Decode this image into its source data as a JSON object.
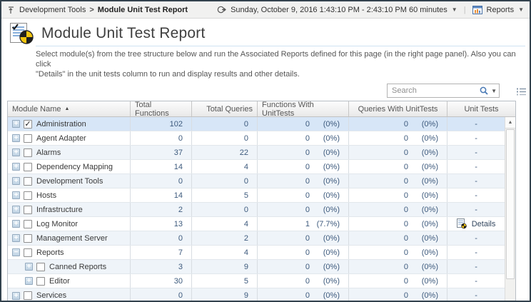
{
  "breadcrumb": {
    "root": "Development Tools",
    "separator": ">",
    "current": "Module Unit Test Report"
  },
  "topbar": {
    "time_range": "Sunday, October 9, 2016 1:43:10 PM - 2:43:10 PM 60 minutes",
    "reports_label": "Reports"
  },
  "header": {
    "title": "Module Unit Test Report",
    "description_lines": [
      "Select module(s) from the tree structure below and run the Associated Reports defined for this page (in the right page panel). Also you can click",
      "\"Details\" in the unit tests column to run and display results and other details."
    ]
  },
  "search": {
    "placeholder": "Search"
  },
  "icons": {
    "sort_asc": "▲",
    "caret_down": "▼",
    "scroll_up": "▲",
    "checkmark": "✓",
    "expand": "+",
    "collapse": "−"
  },
  "colors": {
    "selected_row": "#d7e6f7",
    "alt_row": "#eff4f9",
    "number_text": "#3d5a7d",
    "pie_yellow": "#f2c50f",
    "pie_black": "#1f1f1f",
    "accent_blue": "#4a7ab5"
  },
  "table": {
    "columns": [
      "Module Name",
      "Total Functions",
      "Total Queries",
      "Functions With UnitTests",
      "Queries With UnitTests",
      "Unit Tests"
    ],
    "sort": {
      "column": "Module Name",
      "direction": "asc"
    },
    "rows": [
      {
        "name": "Administration",
        "level": 0,
        "expand": "plus",
        "checked": true,
        "selected": true,
        "total_functions": "102",
        "total_queries": "0",
        "func_count": "0",
        "func_pct": "(0%)",
        "query_count": "0",
        "query_pct": "(0%)",
        "unit_tests": "-",
        "has_details": false
      },
      {
        "name": "Agent Adapter",
        "level": 0,
        "expand": "plus",
        "checked": false,
        "selected": false,
        "total_functions": "0",
        "total_queries": "0",
        "func_count": "0",
        "func_pct": "(0%)",
        "query_count": "0",
        "query_pct": "(0%)",
        "unit_tests": "-",
        "has_details": false
      },
      {
        "name": "Alarms",
        "level": 0,
        "expand": "plus",
        "checked": false,
        "selected": false,
        "total_functions": "37",
        "total_queries": "22",
        "func_count": "0",
        "func_pct": "(0%)",
        "query_count": "0",
        "query_pct": "(0%)",
        "unit_tests": "-",
        "has_details": false
      },
      {
        "name": "Dependency Mapping",
        "level": 0,
        "expand": "plus",
        "checked": false,
        "selected": false,
        "total_functions": "14",
        "total_queries": "4",
        "func_count": "0",
        "func_pct": "(0%)",
        "query_count": "0",
        "query_pct": "(0%)",
        "unit_tests": "-",
        "has_details": false
      },
      {
        "name": "Development Tools",
        "level": 0,
        "expand": "plus",
        "checked": false,
        "selected": false,
        "total_functions": "0",
        "total_queries": "0",
        "func_count": "0",
        "func_pct": "(0%)",
        "query_count": "0",
        "query_pct": "(0%)",
        "unit_tests": "-",
        "has_details": false
      },
      {
        "name": "Hosts",
        "level": 0,
        "expand": "plus",
        "checked": false,
        "selected": false,
        "total_functions": "14",
        "total_queries": "5",
        "func_count": "0",
        "func_pct": "(0%)",
        "query_count": "0",
        "query_pct": "(0%)",
        "unit_tests": "-",
        "has_details": false
      },
      {
        "name": "Infrastructure",
        "level": 0,
        "expand": "plus",
        "checked": false,
        "selected": false,
        "total_functions": "2",
        "total_queries": "0",
        "func_count": "0",
        "func_pct": "(0%)",
        "query_count": "0",
        "query_pct": "(0%)",
        "unit_tests": "-",
        "has_details": false
      },
      {
        "name": "Log Monitor",
        "level": 0,
        "expand": "plus",
        "checked": false,
        "selected": false,
        "total_functions": "13",
        "total_queries": "4",
        "func_count": "1",
        "func_pct": "(7.7%)",
        "query_count": "0",
        "query_pct": "(0%)",
        "unit_tests": "Details",
        "has_details": true
      },
      {
        "name": "Management Server",
        "level": 0,
        "expand": "plus",
        "checked": false,
        "selected": false,
        "total_functions": "0",
        "total_queries": "2",
        "func_count": "0",
        "func_pct": "(0%)",
        "query_count": "0",
        "query_pct": "(0%)",
        "unit_tests": "-",
        "has_details": false
      },
      {
        "name": "Reports",
        "level": 0,
        "expand": "minus",
        "checked": false,
        "selected": false,
        "total_functions": "7",
        "total_queries": "4",
        "func_count": "0",
        "func_pct": "(0%)",
        "query_count": "0",
        "query_pct": "(0%)",
        "unit_tests": "-",
        "has_details": false
      },
      {
        "name": "Canned Reports",
        "level": 1,
        "expand": "plus",
        "checked": false,
        "selected": false,
        "total_functions": "3",
        "total_queries": "9",
        "func_count": "0",
        "func_pct": "(0%)",
        "query_count": "0",
        "query_pct": "(0%)",
        "unit_tests": "-",
        "has_details": false
      },
      {
        "name": "Editor",
        "level": 1,
        "expand": "plus",
        "checked": false,
        "selected": false,
        "total_functions": "30",
        "total_queries": "5",
        "func_count": "0",
        "func_pct": "(0%)",
        "query_count": "0",
        "query_pct": "(0%)",
        "unit_tests": "-",
        "has_details": false
      },
      {
        "name": "Services",
        "level": 0,
        "expand": "plus",
        "checked": false,
        "selected": false,
        "total_functions": "0",
        "total_queries": "9",
        "func_count": "0",
        "func_pct": "(0%)",
        "query_count": "0",
        "query_pct": "(0%)",
        "unit_tests": "-",
        "has_details": false
      }
    ]
  }
}
